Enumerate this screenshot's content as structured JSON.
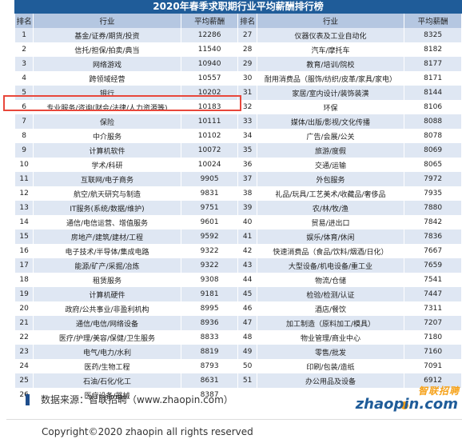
{
  "title": "2020年春季求职期行业平均薪酬排行榜",
  "headers": {
    "rank": "排名",
    "industry": "行业",
    "salary": "平均薪酬"
  },
  "left_rows": [
    {
      "rank": "1",
      "industry": "基金/证券/期货/投资",
      "salary": "12286"
    },
    {
      "rank": "2",
      "industry": "信托/担保/拍卖/典当",
      "salary": "11540"
    },
    {
      "rank": "3",
      "industry": "网络游戏",
      "salary": "10940"
    },
    {
      "rank": "4",
      "industry": "跨领域经营",
      "salary": "10557"
    },
    {
      "rank": "5",
      "industry": "银行",
      "salary": "10202"
    },
    {
      "rank": "6",
      "industry": "专业服务/咨询(财会/法律/人力资源等)",
      "salary": "10183"
    },
    {
      "rank": "7",
      "industry": "保险",
      "salary": "10111"
    },
    {
      "rank": "8",
      "industry": "中介服务",
      "salary": "10102"
    },
    {
      "rank": "9",
      "industry": "计算机软件",
      "salary": "10072"
    },
    {
      "rank": "10",
      "industry": "学术/科研",
      "salary": "10024"
    },
    {
      "rank": "11",
      "industry": "互联网/电子商务",
      "salary": "9905"
    },
    {
      "rank": "12",
      "industry": "航空/航天研究与制造",
      "salary": "9831"
    },
    {
      "rank": "13",
      "industry": "IT服务(系统/数据/维护)",
      "salary": "9751"
    },
    {
      "rank": "14",
      "industry": "通信/电信运营、增值服务",
      "salary": "9601"
    },
    {
      "rank": "15",
      "industry": "房地产/建筑/建材/工程",
      "salary": "9592"
    },
    {
      "rank": "16",
      "industry": "电子技术/半导体/集成电路",
      "salary": "9322"
    },
    {
      "rank": "17",
      "industry": "能源/矿产/采掘/冶炼",
      "salary": "9322"
    },
    {
      "rank": "18",
      "industry": "租赁服务",
      "salary": "9308"
    },
    {
      "rank": "19",
      "industry": "计算机硬件",
      "salary": "9181"
    },
    {
      "rank": "20",
      "industry": "政府/公共事业/非盈利机构",
      "salary": "8995"
    },
    {
      "rank": "21",
      "industry": "通信/电信/网络设备",
      "salary": "8936"
    },
    {
      "rank": "22",
      "industry": "医疗/护理/美容/保健/卫生服务",
      "salary": "8833"
    },
    {
      "rank": "23",
      "industry": "电气/电力/水利",
      "salary": "8819"
    },
    {
      "rank": "24",
      "industry": "医药/生物工程",
      "salary": "8793"
    },
    {
      "rank": "25",
      "industry": "石油/石化/化工",
      "salary": "8631"
    },
    {
      "rank": "26",
      "industry": "医疗设备/器械",
      "salary": "8387"
    }
  ],
  "right_rows": [
    {
      "rank": "27",
      "industry": "仪器仪表及工业自动化",
      "salary": "8325"
    },
    {
      "rank": "28",
      "industry": "汽车/摩托车",
      "salary": "8182"
    },
    {
      "rank": "29",
      "industry": "教育/培训/院校",
      "salary": "8177"
    },
    {
      "rank": "30",
      "industry": "耐用消费品（服饰/纺织/皮革/家具/家电）",
      "salary": "8171"
    },
    {
      "rank": "31",
      "industry": "家居/室内设计/装饰装潢",
      "salary": "8144"
    },
    {
      "rank": "32",
      "industry": "环保",
      "salary": "8106"
    },
    {
      "rank": "33",
      "industry": "媒体/出版/影视/文化传播",
      "salary": "8088"
    },
    {
      "rank": "34",
      "industry": "广告/会展/公关",
      "salary": "8078"
    },
    {
      "rank": "35",
      "industry": "旅游/度假",
      "salary": "8069"
    },
    {
      "rank": "36",
      "industry": "交通/运输",
      "salary": "8065"
    },
    {
      "rank": "37",
      "industry": "外包服务",
      "salary": "7972"
    },
    {
      "rank": "38",
      "industry": "礼品/玩具/工艺美术/收藏品/奢侈品",
      "salary": "7935"
    },
    {
      "rank": "39",
      "industry": "农/林/牧/渔",
      "salary": "7880"
    },
    {
      "rank": "40",
      "industry": "贸易/进出口",
      "salary": "7842"
    },
    {
      "rank": "41",
      "industry": "娱乐/体育/休闲",
      "salary": "7836"
    },
    {
      "rank": "42",
      "industry": "快速消费品（食品/饮料/烟酒/日化）",
      "salary": "7667"
    },
    {
      "rank": "43",
      "industry": "大型设备/机电设备/重工业",
      "salary": "7659"
    },
    {
      "rank": "44",
      "industry": "物流/仓储",
      "salary": "7541"
    },
    {
      "rank": "45",
      "industry": "检验/检测/认证",
      "salary": "7447"
    },
    {
      "rank": "46",
      "industry": "酒店/餐饮",
      "salary": "7311"
    },
    {
      "rank": "47",
      "industry": "加工制造（原料加工/模具）",
      "salary": "7207"
    },
    {
      "rank": "48",
      "industry": "物业管理/商业中心",
      "salary": "7180"
    },
    {
      "rank": "49",
      "industry": "零售/批发",
      "salary": "7160"
    },
    {
      "rank": "50",
      "industry": "印刷/包装/造纸",
      "salary": "7091"
    },
    {
      "rank": "51",
      "industry": "办公用品及设备",
      "salary": "6912"
    }
  ],
  "footer": {
    "source": "数据来源：智联招聘（www.zhaopin.com）",
    "logo_cn": "智联招聘",
    "logo_en": "zhaopin.com",
    "copyright": "Copyright©2020 zhaopin all rights reserved"
  },
  "colors": {
    "title_bg": "#1f5c99",
    "header_bg": "#b5c7e1",
    "stripe_bg": "#dfe7f3",
    "highlight": "#e8473b",
    "logo_orange": "#f6a21a"
  }
}
